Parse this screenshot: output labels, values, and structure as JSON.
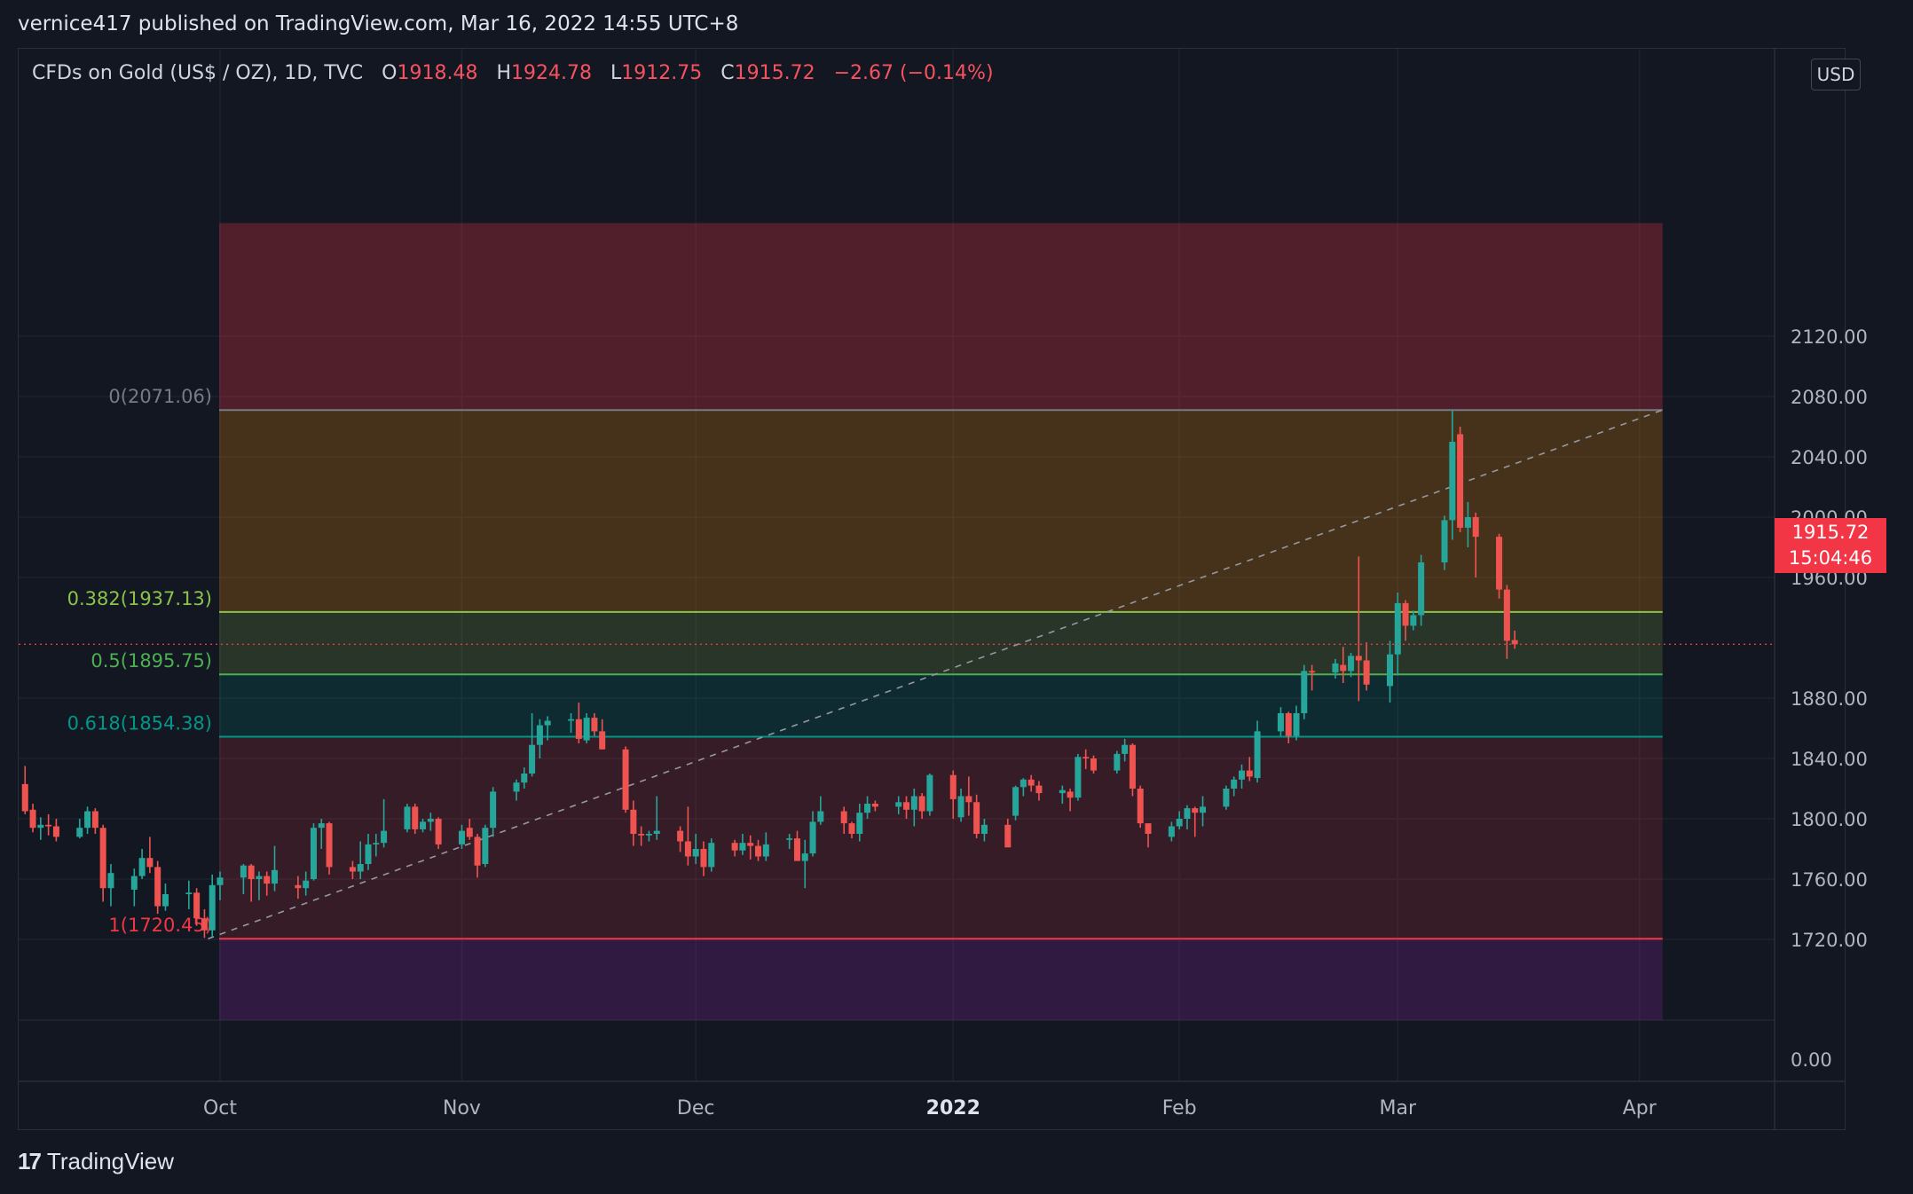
{
  "header": {
    "published_text": "vernice417 published on TradingView.com, Mar 16, 2022 14:55 UTC+8"
  },
  "legend": {
    "symbol": "CFDs on Gold (US$ / OZ), 1D, TVC",
    "open_label": "O",
    "open": "1918.48",
    "high_label": "H",
    "high": "1924.78",
    "low_label": "L",
    "low": "1912.75",
    "close_label": "C",
    "close": "1915.72",
    "change": "−2.67 (−0.14%)"
  },
  "price_axis": {
    "currency": "USD",
    "last_price": "1915.72",
    "countdown": "15:04:46",
    "volume_zero_label": "0.00"
  },
  "footer": {
    "brand": "TradingView"
  },
  "colors": {
    "background": "#131722",
    "up": "#26a69a",
    "down": "#ef5350",
    "last_price": "#f23645",
    "fib_0": "#787b86",
    "fib_0382": "#8bc34a",
    "fib_05": "#4caf50",
    "fib_0618": "#009688",
    "fib_1": "#f23645"
  },
  "chart_data": {
    "type": "candlestick",
    "title": "CFDs on Gold (US$ / OZ), 1D, TVC",
    "ylabel": "USD",
    "ylim": [
      1680,
      2150
    ],
    "yticks": [
      "2120.00",
      "2080.00",
      "2040.00",
      "2000.00",
      "1960.00",
      "1880.00",
      "1840.00",
      "1800.00",
      "1760.00",
      "1720.00"
    ],
    "xticks": [
      {
        "date": "2021-10-01",
        "label": "Oct",
        "bold": false
      },
      {
        "date": "2021-11-01",
        "label": "Nov",
        "bold": false
      },
      {
        "date": "2021-12-01",
        "label": "Dec",
        "bold": false
      },
      {
        "date": "2022-01-03",
        "label": "2022",
        "bold": true
      },
      {
        "date": "2022-02-01",
        "label": "Feb",
        "bold": false
      },
      {
        "date": "2022-03-01",
        "label": "Mar",
        "bold": false
      },
      {
        "date": "2022-04-01",
        "label": "Apr",
        "bold": false
      }
    ],
    "fib_levels": [
      {
        "ratio": 0,
        "price": 2071.06,
        "label": "0(2071.06)"
      },
      {
        "ratio": 0.382,
        "price": 1937.13,
        "label": "0.382(1937.13)"
      },
      {
        "ratio": 0.5,
        "price": 1895.75,
        "label": "0.5(1895.75)"
      },
      {
        "ratio": 0.618,
        "price": 1854.38,
        "label": "0.618(1854.38)"
      },
      {
        "ratio": 1,
        "price": 1720.45,
        "label": "1(1720.45)"
      }
    ],
    "fib_trend_start": {
      "date": "2021-09-29",
      "price": 1720.45
    },
    "fib_trend_end": {
      "date": "2022-03-08",
      "price": 2071.06
    },
    "last_price": 1915.72,
    "candles": [
      [
        "2021-09-06",
        1823,
        1835,
        1803,
        1805
      ],
      [
        "2021-09-07",
        1806,
        1810,
        1791,
        1794
      ],
      [
        "2021-09-08",
        1794,
        1801,
        1786,
        1796
      ],
      [
        "2021-09-09",
        1796,
        1803,
        1789,
        1795
      ],
      [
        "2021-09-10",
        1795,
        1800,
        1785,
        1788
      ],
      [
        "2021-09-13",
        1788,
        1800,
        1787,
        1794
      ],
      [
        "2021-09-14",
        1794,
        1808,
        1790,
        1805
      ],
      [
        "2021-09-15",
        1805,
        1807,
        1790,
        1794
      ],
      [
        "2021-09-16",
        1794,
        1796,
        1745,
        1754
      ],
      [
        "2021-09-17",
        1754,
        1770,
        1742,
        1764
      ],
      [
        "2021-09-20",
        1753,
        1767,
        1742,
        1762
      ],
      [
        "2021-09-21",
        1762,
        1780,
        1760,
        1774
      ],
      [
        "2021-09-22",
        1774,
        1788,
        1764,
        1768
      ],
      [
        "2021-09-23",
        1768,
        1772,
        1737,
        1742
      ],
      [
        "2021-09-24",
        1742,
        1757,
        1739,
        1750
      ],
      [
        "2021-09-27",
        1750,
        1759,
        1740,
        1751
      ],
      [
        "2021-09-28",
        1751,
        1754,
        1729,
        1734
      ],
      [
        "2021-09-29",
        1734,
        1740,
        1721,
        1726
      ],
      [
        "2021-09-30",
        1726,
        1763,
        1722,
        1756
      ],
      [
        "2021-10-01",
        1756,
        1765,
        1746,
        1761
      ],
      [
        "2021-10-04",
        1761,
        1770,
        1750,
        1769
      ],
      [
        "2021-10-05",
        1769,
        1770,
        1745,
        1760
      ],
      [
        "2021-10-06",
        1760,
        1765,
        1746,
        1762
      ],
      [
        "2021-10-07",
        1762,
        1765,
        1749,
        1757
      ],
      [
        "2021-10-08",
        1757,
        1782,
        1752,
        1766
      ],
      [
        "2021-10-11",
        1756,
        1762,
        1747,
        1754
      ],
      [
        "2021-10-12",
        1754,
        1765,
        1749,
        1759
      ],
      [
        "2021-10-13",
        1760,
        1797,
        1759,
        1794
      ],
      [
        "2021-10-14",
        1794,
        1800,
        1780,
        1797
      ],
      [
        "2021-10-15",
        1797,
        1798,
        1763,
        1768
      ],
      [
        "2021-10-18",
        1768,
        1772,
        1760,
        1765
      ],
      [
        "2021-10-19",
        1765,
        1785,
        1760,
        1770
      ],
      [
        "2021-10-20",
        1770,
        1790,
        1766,
        1783
      ],
      [
        "2021-10-21",
        1783,
        1790,
        1775,
        1784
      ],
      [
        "2021-10-22",
        1784,
        1813,
        1781,
        1792
      ],
      [
        "2021-10-25",
        1793,
        1810,
        1791,
        1808
      ],
      [
        "2021-10-26",
        1808,
        1810,
        1790,
        1793
      ],
      [
        "2021-10-27",
        1793,
        1800,
        1791,
        1798
      ],
      [
        "2021-10-28",
        1798,
        1804,
        1792,
        1800
      ],
      [
        "2021-10-29",
        1800,
        1801,
        1780,
        1783
      ],
      [
        "2021-11-01",
        1783,
        1796,
        1780,
        1792
      ],
      [
        "2021-11-02",
        1794,
        1800,
        1786,
        1788
      ],
      [
        "2021-11-03",
        1788,
        1790,
        1761,
        1769
      ],
      [
        "2021-11-04",
        1770,
        1796,
        1768,
        1794
      ],
      [
        "2021-11-05",
        1794,
        1821,
        1788,
        1818
      ],
      [
        "2021-11-08",
        1818,
        1826,
        1812,
        1824
      ],
      [
        "2021-11-09",
        1824,
        1834,
        1820,
        1830
      ],
      [
        "2021-11-10",
        1830,
        1870,
        1828,
        1849
      ],
      [
        "2021-11-11",
        1849,
        1866,
        1840,
        1862
      ],
      [
        "2021-11-12",
        1862,
        1868,
        1852,
        1865
      ],
      [
        "2021-11-15",
        1865,
        1870,
        1857,
        1866
      ],
      [
        "2021-11-16",
        1866,
        1877,
        1850,
        1853
      ],
      [
        "2021-11-17",
        1852,
        1870,
        1850,
        1867
      ],
      [
        "2021-11-18",
        1867,
        1870,
        1855,
        1858
      ],
      [
        "2021-11-19",
        1858,
        1866,
        1846,
        1846
      ],
      [
        "2021-11-22",
        1846,
        1848,
        1804,
        1806
      ],
      [
        "2021-11-23",
        1806,
        1812,
        1782,
        1790
      ],
      [
        "2021-11-24",
        1790,
        1795,
        1782,
        1789
      ],
      [
        "2021-11-25",
        1789,
        1792,
        1785,
        1790
      ],
      [
        "2021-11-26",
        1790,
        1815,
        1786,
        1792
      ],
      [
        "2021-11-29",
        1792,
        1795,
        1778,
        1785
      ],
      [
        "2021-11-30",
        1785,
        1808,
        1769,
        1775
      ],
      [
        "2021-12-01",
        1775,
        1790,
        1770,
        1780
      ],
      [
        "2021-12-02",
        1780,
        1785,
        1762,
        1768
      ],
      [
        "2021-12-03",
        1768,
        1787,
        1765,
        1784
      ],
      [
        "2021-12-06",
        1784,
        1786,
        1775,
        1779
      ],
      [
        "2021-12-07",
        1779,
        1790,
        1776,
        1784
      ],
      [
        "2021-12-08",
        1784,
        1789,
        1773,
        1782
      ],
      [
        "2021-12-09",
        1782,
        1786,
        1772,
        1775
      ],
      [
        "2021-12-10",
        1775,
        1791,
        1772,
        1783
      ],
      [
        "2021-12-13",
        1786,
        1790,
        1780,
        1787
      ],
      [
        "2021-12-14",
        1787,
        1792,
        1775,
        1772
      ],
      [
        "2021-12-15",
        1772,
        1786,
        1754,
        1777
      ],
      [
        "2021-12-16",
        1777,
        1805,
        1775,
        1798
      ],
      [
        "2021-12-17",
        1798,
        1815,
        1796,
        1805
      ],
      [
        "2021-12-20",
        1805,
        1808,
        1790,
        1797
      ],
      [
        "2021-12-21",
        1797,
        1798,
        1787,
        1790
      ],
      [
        "2021-12-22",
        1790,
        1810,
        1785,
        1804
      ],
      [
        "2021-12-23",
        1804,
        1815,
        1800,
        1810
      ],
      [
        "2021-12-24",
        1810,
        1812,
        1805,
        1808
      ],
      [
        "2021-12-27",
        1808,
        1815,
        1803,
        1811
      ],
      [
        "2021-12-28",
        1811,
        1815,
        1800,
        1806
      ],
      [
        "2021-12-29",
        1806,
        1820,
        1795,
        1815
      ],
      [
        "2021-12-30",
        1815,
        1817,
        1800,
        1805
      ],
      [
        "2021-12-31",
        1805,
        1830,
        1802,
        1829
      ],
      [
        "2022-01-03",
        1829,
        1832,
        1800,
        1813
      ],
      [
        "2022-01-04",
        1801,
        1820,
        1798,
        1815
      ],
      [
        "2022-01-05",
        1815,
        1828,
        1802,
        1811
      ],
      [
        "2022-01-06",
        1811,
        1816,
        1787,
        1790
      ],
      [
        "2022-01-07",
        1790,
        1800,
        1785,
        1796
      ],
      [
        "2022-01-10",
        1796,
        1800,
        1782,
        1781
      ],
      [
        "2022-01-11",
        1802,
        1822,
        1799,
        1821
      ],
      [
        "2022-01-12",
        1821,
        1827,
        1815,
        1826
      ],
      [
        "2022-01-13",
        1826,
        1829,
        1818,
        1822
      ],
      [
        "2022-01-14",
        1822,
        1825,
        1812,
        1817
      ],
      [
        "2022-01-17",
        1817,
        1822,
        1810,
        1819
      ],
      [
        "2022-01-18",
        1818,
        1820,
        1805,
        1814
      ],
      [
        "2022-01-19",
        1814,
        1843,
        1812,
        1841
      ],
      [
        "2022-01-20",
        1841,
        1846,
        1833,
        1840
      ],
      [
        "2022-01-21",
        1840,
        1842,
        1830,
        1832
      ],
      [
        "2022-01-24",
        1832,
        1845,
        1830,
        1843
      ],
      [
        "2022-01-25",
        1843,
        1853,
        1838,
        1849
      ],
      [
        "2022-01-26",
        1849,
        1850,
        1815,
        1820
      ],
      [
        "2022-01-27",
        1820,
        1822,
        1794,
        1797
      ],
      [
        "2022-01-28",
        1797,
        1797,
        1781,
        1790
      ],
      [
        "2022-01-31",
        1788,
        1798,
        1785,
        1795
      ],
      [
        "2022-02-01",
        1795,
        1805,
        1793,
        1800
      ],
      [
        "2022-02-02",
        1800,
        1809,
        1793,
        1807
      ],
      [
        "2022-02-03",
        1807,
        1808,
        1788,
        1804
      ],
      [
        "2022-02-04",
        1804,
        1815,
        1795,
        1808
      ],
      [
        "2022-02-07",
        1808,
        1822,
        1806,
        1820
      ],
      [
        "2022-02-08",
        1820,
        1828,
        1815,
        1826
      ],
      [
        "2022-02-09",
        1826,
        1836,
        1820,
        1832
      ],
      [
        "2022-02-10",
        1832,
        1841,
        1825,
        1828
      ],
      [
        "2022-02-11",
        1827,
        1865,
        1824,
        1858
      ],
      [
        "2022-02-14",
        1858,
        1874,
        1855,
        1870
      ],
      [
        "2022-02-15",
        1870,
        1871,
        1850,
        1855
      ],
      [
        "2022-02-16",
        1855,
        1875,
        1852,
        1870
      ],
      [
        "2022-02-17",
        1870,
        1902,
        1866,
        1898
      ],
      [
        "2022-02-18",
        1898,
        1902,
        1885,
        1897
      ],
      [
        "2022-02-21",
        1897,
        1906,
        1893,
        1903
      ],
      [
        "2022-02-22",
        1902,
        1914,
        1890,
        1898
      ],
      [
        "2022-02-23",
        1898,
        1910,
        1894,
        1908
      ],
      [
        "2022-02-24",
        1908,
        1974,
        1878,
        1905
      ],
      [
        "2022-02-25",
        1905,
        1917,
        1885,
        1889
      ],
      [
        "2022-02-28",
        1888,
        1918,
        1877,
        1909
      ],
      [
        "2022-03-01",
        1909,
        1950,
        1895,
        1943
      ],
      [
        "2022-03-02",
        1943,
        1945,
        1918,
        1928
      ],
      [
        "2022-03-03",
        1928,
        1938,
        1925,
        1935
      ],
      [
        "2022-03-04",
        1935,
        1975,
        1928,
        1970
      ],
      [
        "2022-03-07",
        1970,
        2001,
        1965,
        1998
      ],
      [
        "2022-03-08",
        1998,
        2071,
        1985,
        2050
      ],
      [
        "2022-03-09",
        2055,
        2060,
        1990,
        1993
      ],
      [
        "2022-03-10",
        1993,
        2010,
        1980,
        2000
      ],
      [
        "2022-03-11",
        2000,
        2003,
        1960,
        1987
      ],
      [
        "2022-03-14",
        1987,
        1989,
        1946,
        1952
      ],
      [
        "2022-03-15",
        1952,
        1955,
        1906,
        1918
      ],
      [
        "2022-03-16",
        1918.48,
        1924.78,
        1912.75,
        1915.72
      ]
    ]
  }
}
